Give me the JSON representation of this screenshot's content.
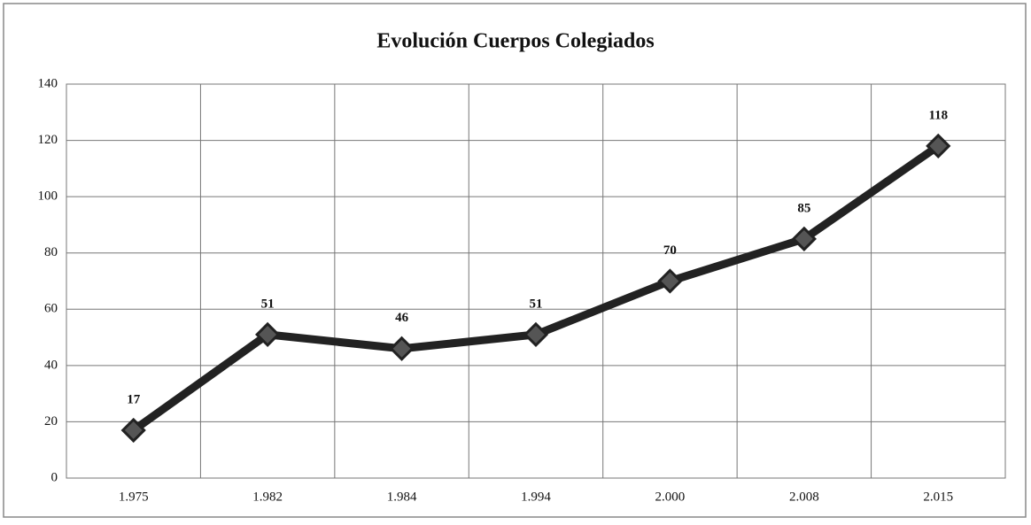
{
  "chart_data": {
    "type": "line",
    "title": "Evolución Cuerpos Colegiados",
    "categories": [
      "1.975",
      "1.982",
      "1.984",
      "1.994",
      "2.000",
      "2.008",
      "2.015"
    ],
    "series": [
      {
        "name": "Cuerpos Colegiados",
        "color": "#222222",
        "values": [
          17,
          51,
          46,
          51,
          70,
          85,
          118
        ]
      }
    ],
    "ylim": [
      0,
      140
    ],
    "yticks": [
      0,
      20,
      40,
      60,
      80,
      100,
      120,
      140
    ],
    "grid": true
  }
}
